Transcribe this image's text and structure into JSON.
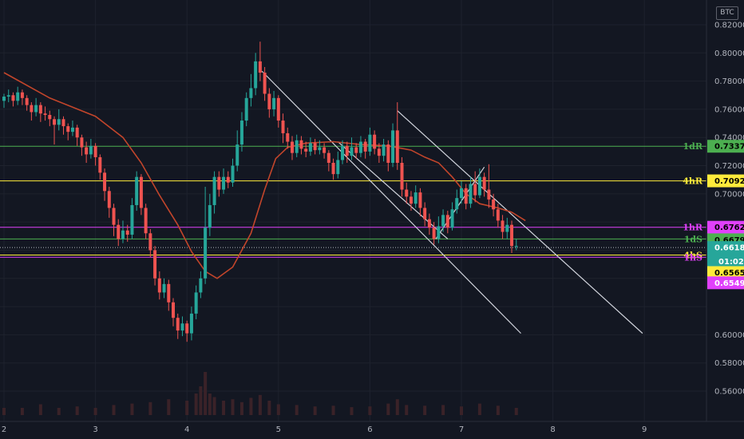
{
  "currency": "BTC",
  "chart_data": {
    "type": "candlestick",
    "x_ticks": [
      "2",
      "3",
      "4",
      "5",
      "6",
      "7",
      "8",
      "9"
    ],
    "y_ticks": [
      "0.82000",
      "0.80000",
      "0.78000",
      "0.76000",
      "0.74000",
      "0.72000",
      "0.70000",
      "0.60000",
      "0.58000",
      "0.56000"
    ],
    "ylim": [
      0.55,
      0.825
    ],
    "xlim": [
      2,
      9.8
    ],
    "levels": [
      {
        "label": "1dR",
        "value": 0.73377,
        "color": "#4caf50",
        "tag_bg": "#4caf50",
        "tag_color": "#000000"
      },
      {
        "label": "4hR",
        "value": 0.70922,
        "color": "#ffeb3b",
        "tag_bg": "#ffeb3b",
        "tag_color": "#000000"
      },
      {
        "label": "1hR",
        "value": 0.67629,
        "color": "#e040fb",
        "tag_bg": "#e040fb",
        "tag_color": "#000000"
      },
      {
        "label": "1dS",
        "value": 0.66797,
        "color": "#4caf50",
        "tag_bg": "#4caf50",
        "tag_color": "#000000"
      },
      {
        "label": "4hS",
        "value": 0.65659,
        "color": "#ffeb3b",
        "tag_bg": "#ffeb3b",
        "tag_color": "#000000"
      },
      {
        "label": "1hS",
        "value": 0.65499,
        "color": "#e040fb",
        "tag_bg": "#e040fb",
        "tag_color": "#ffffff"
      }
    ],
    "current_price": {
      "value": 0.66189,
      "countdown": "01:02"
    },
    "channel_lines": [
      {
        "from": [
          4.82,
          0.787
        ],
        "to": [
          7.65,
          0.601
        ]
      },
      {
        "from": [
          6.3,
          0.759
        ],
        "to": [
          8.98,
          0.601
        ]
      },
      {
        "from": [
          5.65,
          0.737
        ],
        "to": [
          6.85,
          0.668
        ]
      },
      {
        "from": [
          6.72,
          0.668
        ],
        "to": [
          7.25,
          0.719
        ]
      }
    ],
    "moving_average": {
      "color": "#c2452b",
      "points": [
        [
          2.0,
          0.786
        ],
        [
          2.5,
          0.768
        ],
        [
          3.0,
          0.755
        ],
        [
          3.3,
          0.74
        ],
        [
          3.5,
          0.722
        ],
        [
          3.7,
          0.699
        ],
        [
          3.9,
          0.678
        ],
        [
          4.05,
          0.659
        ],
        [
          4.2,
          0.645
        ],
        [
          4.33,
          0.64
        ],
        [
          4.5,
          0.648
        ],
        [
          4.7,
          0.672
        ],
        [
          4.85,
          0.703
        ],
        [
          4.97,
          0.725
        ],
        [
          5.1,
          0.733
        ],
        [
          5.3,
          0.736
        ],
        [
          5.6,
          0.737
        ],
        [
          5.9,
          0.735
        ],
        [
          6.2,
          0.734
        ],
        [
          6.45,
          0.731
        ],
        [
          6.6,
          0.726
        ],
        [
          6.75,
          0.722
        ],
        [
          6.9,
          0.712
        ],
        [
          7.05,
          0.7
        ],
        [
          7.2,
          0.693
        ],
        [
          7.4,
          0.69
        ],
        [
          7.55,
          0.687
        ],
        [
          7.7,
          0.681
        ]
      ]
    },
    "candles": [
      [
        2.0,
        0.766,
        0.769,
        0.771,
        0.761
      ],
      [
        2.05,
        0.769,
        0.77,
        0.774,
        0.765
      ],
      [
        2.1,
        0.77,
        0.766,
        0.772,
        0.762
      ],
      [
        2.15,
        0.766,
        0.772,
        0.776,
        0.763
      ],
      [
        2.2,
        0.772,
        0.768,
        0.774,
        0.763
      ],
      [
        2.25,
        0.768,
        0.763,
        0.77,
        0.759
      ],
      [
        2.3,
        0.763,
        0.758,
        0.765,
        0.752
      ],
      [
        2.35,
        0.758,
        0.763,
        0.768,
        0.755
      ],
      [
        2.4,
        0.763,
        0.757,
        0.765,
        0.751
      ],
      [
        2.45,
        0.757,
        0.756,
        0.762,
        0.752
      ],
      [
        2.5,
        0.756,
        0.753,
        0.759,
        0.748
      ],
      [
        2.55,
        0.753,
        0.749,
        0.755,
        0.735
      ],
      [
        2.6,
        0.749,
        0.753,
        0.76,
        0.745
      ],
      [
        2.65,
        0.753,
        0.748,
        0.755,
        0.742
      ],
      [
        2.7,
        0.748,
        0.744,
        0.75,
        0.738
      ],
      [
        2.75,
        0.744,
        0.747,
        0.752,
        0.741
      ],
      [
        2.8,
        0.747,
        0.74,
        0.749,
        0.734
      ],
      [
        2.85,
        0.74,
        0.733,
        0.742,
        0.727
      ],
      [
        2.9,
        0.733,
        0.728,
        0.737,
        0.722
      ],
      [
        2.95,
        0.728,
        0.734,
        0.739,
        0.725
      ],
      [
        3.0,
        0.734,
        0.726,
        0.736,
        0.72
      ],
      [
        3.05,
        0.726,
        0.715,
        0.728,
        0.71
      ],
      [
        3.1,
        0.715,
        0.702,
        0.718,
        0.695
      ],
      [
        3.15,
        0.702,
        0.69,
        0.705,
        0.683
      ],
      [
        3.2,
        0.69,
        0.678,
        0.693,
        0.67
      ],
      [
        3.25,
        0.678,
        0.668,
        0.682,
        0.663
      ],
      [
        3.3,
        0.668,
        0.674,
        0.681,
        0.665
      ],
      [
        3.35,
        0.674,
        0.671,
        0.678,
        0.666
      ],
      [
        3.4,
        0.671,
        0.692,
        0.697,
        0.668
      ],
      [
        3.45,
        0.692,
        0.712,
        0.716,
        0.688
      ],
      [
        3.5,
        0.712,
        0.69,
        0.714,
        0.685
      ],
      [
        3.55,
        0.69,
        0.672,
        0.693,
        0.668
      ],
      [
        3.6,
        0.672,
        0.66,
        0.675,
        0.655
      ],
      [
        3.65,
        0.66,
        0.64,
        0.663,
        0.635
      ],
      [
        3.7,
        0.64,
        0.63,
        0.645,
        0.625
      ],
      [
        3.75,
        0.63,
        0.636,
        0.64,
        0.626
      ],
      [
        3.8,
        0.636,
        0.623,
        0.639,
        0.617
      ],
      [
        3.85,
        0.623,
        0.612,
        0.626,
        0.606
      ],
      [
        3.9,
        0.612,
        0.603,
        0.615,
        0.597
      ],
      [
        3.95,
        0.603,
        0.608,
        0.613,
        0.599
      ],
      [
        4.0,
        0.608,
        0.601,
        0.61,
        0.595
      ],
      [
        4.05,
        0.601,
        0.615,
        0.62,
        0.596
      ],
      [
        4.1,
        0.615,
        0.63,
        0.635,
        0.611
      ],
      [
        4.15,
        0.63,
        0.64,
        0.645,
        0.626
      ],
      [
        4.2,
        0.64,
        0.676,
        0.705,
        0.636
      ],
      [
        4.25,
        0.676,
        0.692,
        0.7,
        0.67
      ],
      [
        4.3,
        0.692,
        0.712,
        0.716,
        0.686
      ],
      [
        4.35,
        0.712,
        0.703,
        0.716,
        0.698
      ],
      [
        4.4,
        0.703,
        0.712,
        0.718,
        0.7
      ],
      [
        4.45,
        0.712,
        0.708,
        0.716,
        0.704
      ],
      [
        4.5,
        0.708,
        0.72,
        0.725,
        0.705
      ],
      [
        4.55,
        0.72,
        0.735,
        0.745,
        0.716
      ],
      [
        4.6,
        0.735,
        0.752,
        0.758,
        0.73
      ],
      [
        4.65,
        0.752,
        0.768,
        0.772,
        0.748
      ],
      [
        4.7,
        0.768,
        0.775,
        0.785,
        0.762
      ],
      [
        4.75,
        0.775,
        0.794,
        0.8,
        0.77
      ],
      [
        4.8,
        0.794,
        0.786,
        0.808,
        0.78
      ],
      [
        4.85,
        0.786,
        0.771,
        0.79,
        0.766
      ],
      [
        4.9,
        0.771,
        0.76,
        0.775,
        0.754
      ],
      [
        4.95,
        0.76,
        0.768,
        0.773,
        0.755
      ],
      [
        5.0,
        0.768,
        0.752,
        0.77,
        0.747
      ],
      [
        5.05,
        0.752,
        0.743,
        0.757,
        0.736
      ],
      [
        5.1,
        0.743,
        0.737,
        0.747,
        0.732
      ],
      [
        5.15,
        0.737,
        0.729,
        0.741,
        0.724
      ],
      [
        5.2,
        0.729,
        0.738,
        0.742,
        0.726
      ],
      [
        5.25,
        0.738,
        0.732,
        0.741,
        0.728
      ],
      [
        5.3,
        0.732,
        0.73,
        0.737,
        0.726
      ],
      [
        5.35,
        0.73,
        0.736,
        0.74,
        0.727
      ],
      [
        5.4,
        0.736,
        0.731,
        0.739,
        0.728
      ],
      [
        5.45,
        0.731,
        0.733,
        0.738,
        0.728
      ],
      [
        5.5,
        0.733,
        0.729,
        0.736,
        0.725
      ],
      [
        5.55,
        0.729,
        0.722,
        0.731,
        0.716
      ],
      [
        5.6,
        0.722,
        0.714,
        0.725,
        0.71
      ],
      [
        5.65,
        0.714,
        0.724,
        0.73,
        0.711
      ],
      [
        5.7,
        0.724,
        0.734,
        0.738,
        0.721
      ],
      [
        5.75,
        0.734,
        0.727,
        0.737,
        0.722
      ],
      [
        5.8,
        0.727,
        0.733,
        0.74,
        0.724
      ],
      [
        5.85,
        0.733,
        0.729,
        0.736,
        0.725
      ],
      [
        5.9,
        0.729,
        0.737,
        0.741,
        0.726
      ],
      [
        5.95,
        0.737,
        0.73,
        0.739,
        0.725
      ],
      [
        6.0,
        0.73,
        0.742,
        0.747,
        0.727
      ],
      [
        6.05,
        0.742,
        0.732,
        0.745,
        0.728
      ],
      [
        6.1,
        0.732,
        0.727,
        0.736,
        0.722
      ],
      [
        6.15,
        0.727,
        0.735,
        0.739,
        0.723
      ],
      [
        6.2,
        0.735,
        0.722,
        0.738,
        0.716
      ],
      [
        6.25,
        0.722,
        0.745,
        0.75,
        0.719
      ],
      [
        6.3,
        0.745,
        0.722,
        0.765,
        0.717
      ],
      [
        6.35,
        0.722,
        0.703,
        0.726,
        0.698
      ],
      [
        6.4,
        0.703,
        0.698,
        0.708,
        0.693
      ],
      [
        6.45,
        0.698,
        0.693,
        0.702,
        0.688
      ],
      [
        6.5,
        0.693,
        0.701,
        0.706,
        0.69
      ],
      [
        6.55,
        0.701,
        0.69,
        0.704,
        0.684
      ],
      [
        6.6,
        0.69,
        0.682,
        0.694,
        0.677
      ],
      [
        6.65,
        0.682,
        0.676,
        0.686,
        0.671
      ],
      [
        6.7,
        0.676,
        0.668,
        0.68,
        0.664
      ],
      [
        6.75,
        0.668,
        0.677,
        0.684,
        0.665
      ],
      [
        6.8,
        0.677,
        0.685,
        0.689,
        0.673
      ],
      [
        6.85,
        0.685,
        0.676,
        0.688,
        0.672
      ],
      [
        6.9,
        0.676,
        0.689,
        0.694,
        0.674
      ],
      [
        6.95,
        0.689,
        0.697,
        0.703,
        0.686
      ],
      [
        7.0,
        0.697,
        0.704,
        0.709,
        0.693
      ],
      [
        7.05,
        0.704,
        0.693,
        0.707,
        0.689
      ],
      [
        7.1,
        0.693,
        0.707,
        0.712,
        0.69
      ],
      [
        7.15,
        0.707,
        0.699,
        0.716,
        0.694
      ],
      [
        7.2,
        0.699,
        0.712,
        0.718,
        0.697
      ],
      [
        7.25,
        0.712,
        0.703,
        0.715,
        0.698
      ],
      [
        7.3,
        0.703,
        0.696,
        0.721,
        0.69
      ],
      [
        7.35,
        0.696,
        0.689,
        0.7,
        0.684
      ],
      [
        7.4,
        0.689,
        0.681,
        0.693,
        0.676
      ],
      [
        7.45,
        0.681,
        0.673,
        0.685,
        0.668
      ],
      [
        7.5,
        0.673,
        0.678,
        0.683,
        0.668
      ],
      [
        7.55,
        0.678,
        0.663,
        0.681,
        0.658
      ],
      [
        7.6,
        0.663,
        0.663,
        0.668,
        0.66
      ]
    ],
    "volumes": [
      [
        2.0,
        1
      ],
      [
        2.2,
        1
      ],
      [
        2.4,
        1.5
      ],
      [
        2.6,
        1
      ],
      [
        2.8,
        1.2
      ],
      [
        3.0,
        1
      ],
      [
        3.2,
        1.4
      ],
      [
        3.4,
        1.6
      ],
      [
        3.6,
        1.8
      ],
      [
        3.8,
        2.2
      ],
      [
        4.0,
        2
      ],
      [
        4.1,
        3
      ],
      [
        4.15,
        4
      ],
      [
        4.2,
        6
      ],
      [
        4.25,
        3
      ],
      [
        4.3,
        2.5
      ],
      [
        4.4,
        2
      ],
      [
        4.5,
        2.2
      ],
      [
        4.6,
        1.8
      ],
      [
        4.7,
        2.4
      ],
      [
        4.8,
        2.8
      ],
      [
        4.9,
        2
      ],
      [
        5.0,
        1.5
      ],
      [
        5.2,
        1.4
      ],
      [
        5.4,
        1.2
      ],
      [
        5.6,
        1.3
      ],
      [
        5.8,
        1.1
      ],
      [
        6.0,
        1.2
      ],
      [
        6.2,
        1.6
      ],
      [
        6.3,
        2.2
      ],
      [
        6.4,
        1.4
      ],
      [
        6.6,
        1.3
      ],
      [
        6.8,
        1.4
      ],
      [
        7.0,
        1.2
      ],
      [
        7.2,
        1.6
      ],
      [
        7.4,
        1.3
      ],
      [
        7.6,
        1
      ]
    ]
  }
}
